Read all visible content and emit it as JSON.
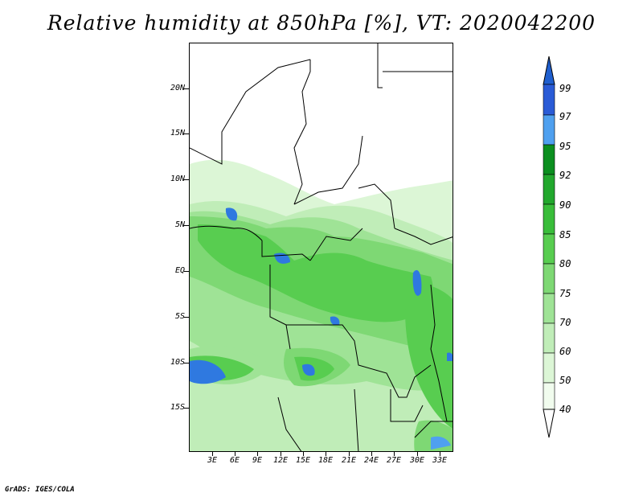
{
  "title": "Relative humidity at 850hPa [%], VT: 2020042200",
  "credit": "GrADS: IGES/COLA",
  "map": {
    "lat_labels": [
      "20N",
      "15N",
      "10N",
      "5N",
      "EQ",
      "5S",
      "10S",
      "15S"
    ],
    "lon_labels": [
      "3E",
      "6E",
      "9E",
      "12E",
      "15E",
      "18E",
      "21E",
      "24E",
      "27E",
      "30E",
      "33E"
    ]
  },
  "colorbar": {
    "labels": [
      "99",
      "97",
      "95",
      "92",
      "90",
      "85",
      "80",
      "75",
      "70",
      "60",
      "50",
      "40"
    ],
    "colors": [
      "#2a5bd6",
      "#2f79e0",
      "#4fa0ef",
      "#0b8f1f",
      "#22a82d",
      "#39bd3a",
      "#58cd50",
      "#7ed874",
      "#9fe396",
      "#c0edb8",
      "#dcf6d6",
      "#f1fcee"
    ]
  }
}
